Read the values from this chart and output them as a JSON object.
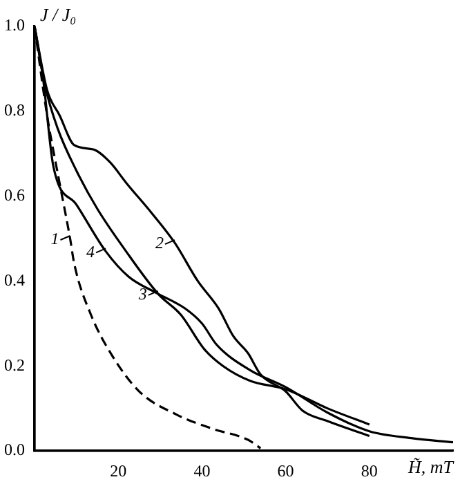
{
  "chart_data": {
    "type": "line",
    "xlabel": "H̃, mT",
    "ylabel": "J / J₀",
    "xlim": [
      0,
      100
    ],
    "xticks": [
      20,
      40,
      60,
      80
    ],
    "ylim": [
      0,
      1
    ],
    "yticks": [
      {
        "value": 0,
        "label": "0.0"
      },
      {
        "value": 0.2,
        "label": "0.2"
      },
      {
        "value": 0.4,
        "label": "0.4"
      },
      {
        "value": 0.6,
        "label": "0.6"
      },
      {
        "value": 0.8,
        "label": "0.8"
      },
      {
        "value": 1,
        "label": "1.0"
      }
    ],
    "grid": false,
    "legend": false,
    "marker": "none",
    "series": [
      {
        "color": "#000000",
        "line_style": "dashed",
        "x": [
          0,
          3,
          6,
          8.5,
          9.5,
          13.5,
          18.5,
          25,
          34,
          42.5,
          51,
          54
        ],
        "values": [
          1,
          0.79,
          0.63,
          0.5,
          0.44,
          0.32,
          0.225,
          0.14,
          0.085,
          0.052,
          0.026,
          0.006
        ]
      },
      {
        "color": "#000000",
        "line_style": "solid",
        "x": [
          0,
          3,
          6,
          9.5,
          14,
          18,
          22,
          28,
          33.5,
          39,
          44,
          47.5,
          51,
          54,
          60,
          64,
          70,
          80
        ],
        "values": [
          1,
          0.85,
          0.79,
          0.72,
          0.71,
          0.68,
          0.63,
          0.56,
          0.49,
          0.4,
          0.335,
          0.27,
          0.23,
          0.18,
          0.14,
          0.095,
          0.07,
          0.035
        ]
      },
      {
        "color": "#000000",
        "line_style": "solid",
        "x": [
          0,
          2.5,
          5.5,
          10,
          15,
          21.5,
          29.5,
          35,
          40.5,
          45,
          51.5,
          60,
          70,
          80
        ],
        "values": [
          1,
          0.86,
          0.76,
          0.66,
          0.57,
          0.475,
          0.37,
          0.32,
          0.24,
          0.2,
          0.165,
          0.145,
          0.1,
          0.062
        ]
      },
      {
        "color": "#000000",
        "line_style": "solid",
        "x": [
          0,
          2,
          4.5,
          10,
          17,
          22.5,
          29.5,
          36,
          40,
          43.5,
          51.5,
          60,
          70,
          80,
          90,
          100
        ],
        "values": [
          1,
          0.88,
          0.67,
          0.58,
          0.47,
          0.41,
          0.37,
          0.335,
          0.3,
          0.25,
          0.19,
          0.15,
          0.09,
          0.046,
          0.03,
          0.02
        ]
      }
    ],
    "annotations": [
      {
        "text": "1",
        "x": 8.5,
        "y": 0.5
      },
      {
        "text": "4",
        "x": 17,
        "y": 0.47
      },
      {
        "text": "3",
        "x": 29.5,
        "y": 0.37
      },
      {
        "text": "2",
        "x": 33.5,
        "y": 0.49
      }
    ]
  }
}
